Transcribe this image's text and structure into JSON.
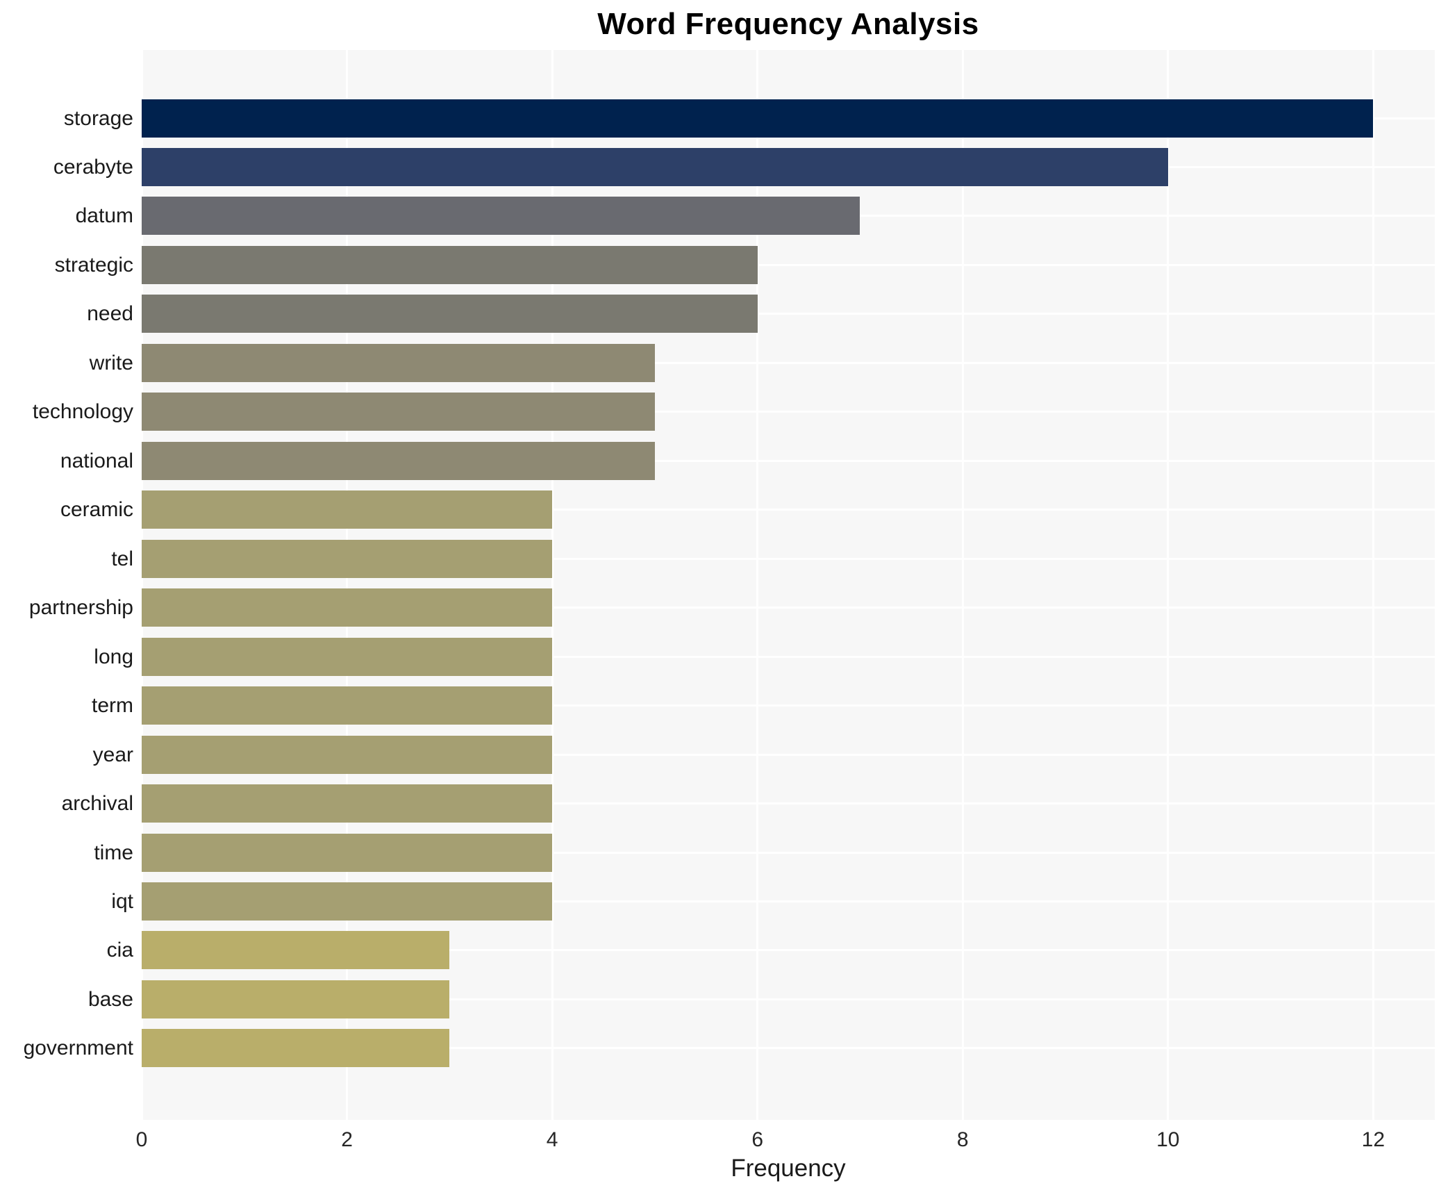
{
  "figure": {
    "title": "Word Frequency Analysis",
    "x_axis_label": "Frequency"
  },
  "chart_data": {
    "type": "bar",
    "orientation": "horizontal",
    "title": "Word Frequency Analysis",
    "xlabel": "Frequency",
    "ylabel": "",
    "categories": [
      "storage",
      "cerabyte",
      "datum",
      "strategic",
      "need",
      "write",
      "technology",
      "national",
      "ceramic",
      "tel",
      "partnership",
      "long",
      "term",
      "year",
      "archival",
      "time",
      "iqt",
      "cia",
      "base",
      "government"
    ],
    "values": [
      12,
      10,
      7,
      6,
      6,
      5,
      5,
      5,
      4,
      4,
      4,
      4,
      4,
      4,
      4,
      4,
      4,
      3,
      3,
      3
    ],
    "bar_colors": [
      "#00224e",
      "#2d4068",
      "#696a70",
      "#7a7970",
      "#7a7970",
      "#8e8973",
      "#8e8973",
      "#8e8973",
      "#a59f72",
      "#a59f72",
      "#a59f72",
      "#a59f72",
      "#a59f72",
      "#a59f72",
      "#a59f72",
      "#a59f72",
      "#a59f72",
      "#b9ae6a",
      "#b9ae6a",
      "#b9ae6a"
    ],
    "xlim": [
      0,
      12.6
    ],
    "xticks": [
      0,
      2,
      4,
      6,
      8,
      10,
      12
    ],
    "grid": "major white gridlines at x ticks and at category centers",
    "legend": "none",
    "panel_bg": "#f7f7f7",
    "grid_color": "#ffffff",
    "title_color": "#000000",
    "tick_label_color": "#262626"
  }
}
